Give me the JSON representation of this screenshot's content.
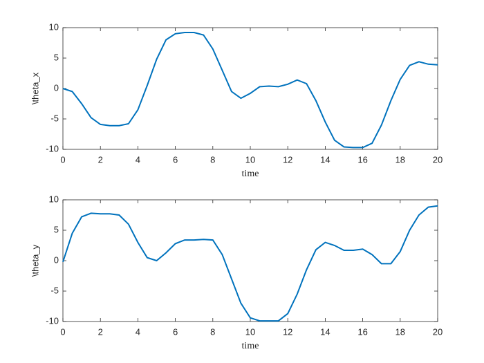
{
  "chart_data": [
    {
      "type": "line",
      "ylabel": "\\theta_x",
      "xlabel": "time",
      "color": "#0072bd",
      "x": [
        0,
        0.5,
        1,
        1.5,
        2,
        2.5,
        3,
        3.5,
        4,
        4.5,
        5,
        5.5,
        6,
        6.5,
        7,
        7.5,
        8,
        8.5,
        9,
        9.5,
        10,
        10.5,
        11,
        11.5,
        12,
        12.5,
        13,
        13.5,
        14,
        14.5,
        15,
        15.5,
        16,
        16.5,
        17,
        17.5,
        18,
        18.5,
        19,
        19.5,
        20
      ],
      "values": [
        0,
        -0.5,
        -2.5,
        -4.8,
        -5.9,
        -6.1,
        -6.1,
        -5.8,
        -3.5,
        0.5,
        4.8,
        8.0,
        9.0,
        9.2,
        9.2,
        8.8,
        6.5,
        3,
        -0.5,
        -1.6,
        -0.8,
        0.3,
        0.4,
        0.3,
        0.7,
        1.4,
        0.8,
        -2,
        -5.5,
        -8.5,
        -9.6,
        -9.7,
        -9.7,
        -9,
        -6,
        -2,
        1.5,
        3.8,
        4.4,
        4.0,
        3.9
      ],
      "xlim": [
        0,
        20
      ],
      "xticks": [
        0,
        2,
        4,
        6,
        8,
        10,
        12,
        14,
        16,
        18,
        20
      ],
      "ylim": [
        -10,
        10
      ],
      "yticks": [
        -10,
        -5,
        0,
        5,
        10
      ]
    },
    {
      "type": "line",
      "ylabel": "\\theta_y",
      "xlabel": "time",
      "color": "#0072bd",
      "x": [
        0,
        0.5,
        1,
        1.5,
        2,
        2.5,
        3,
        3.5,
        4,
        4.5,
        5,
        5.5,
        6,
        6.5,
        7,
        7.5,
        8,
        8.5,
        9,
        9.5,
        10,
        10.5,
        11,
        11.5,
        12,
        12.5,
        13,
        13.5,
        14,
        14.5,
        15,
        15.5,
        16,
        16.5,
        17,
        17.5,
        18,
        18.5,
        19,
        19.5,
        20
      ],
      "values": [
        -0.2,
        4.5,
        7.2,
        7.8,
        7.7,
        7.7,
        7.5,
        6,
        3,
        0.5,
        0,
        1.3,
        2.8,
        3.4,
        3.4,
        3.5,
        3.4,
        1,
        -3,
        -7,
        -9.4,
        -9.9,
        -9.9,
        -9.9,
        -8.7,
        -5.5,
        -1.5,
        1.8,
        3,
        2.5,
        1.7,
        1.7,
        1.9,
        1,
        -0.5,
        -0.5,
        1.5,
        5,
        7.5,
        8.8,
        9
      ],
      "xlim": [
        0,
        20
      ],
      "xticks": [
        0,
        2,
        4,
        6,
        8,
        10,
        12,
        14,
        16,
        18,
        20
      ],
      "ylim": [
        -10,
        10
      ],
      "yticks": [
        -10,
        -5,
        0,
        5,
        10
      ]
    }
  ]
}
